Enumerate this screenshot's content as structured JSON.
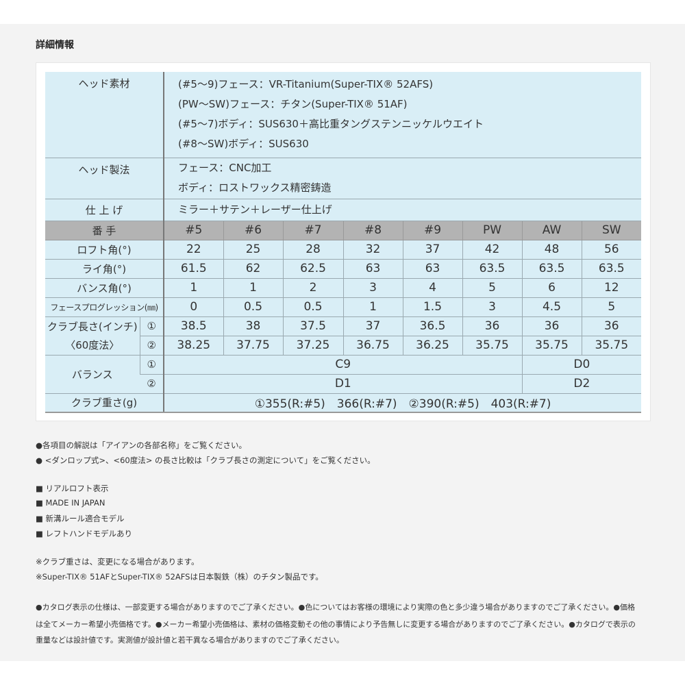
{
  "title": "詳細情報",
  "spec": {
    "head_material": {
      "label": "ヘッド素材",
      "lines": [
        "(#5〜9)フェース：VR-Titanium(Super-TIX® 52AFS)",
        "(PW〜SW)フェース：チタン(Super-TIX® 51AF)",
        "(#5〜7)ボディ：SUS630＋高比重タングステンニッケルウエイト",
        "(#8〜SW)ボディ：SUS630"
      ]
    },
    "head_method": {
      "label": "ヘッド製法",
      "lines": [
        "フェース：CNC加工",
        "ボディ：ロストワックス精密鋳造"
      ]
    },
    "finish": {
      "label": "仕 上 げ",
      "value": "ミラー＋サテン＋レーザー仕上げ"
    }
  },
  "table": {
    "header_label": "番 手",
    "columns": [
      "#5",
      "#6",
      "#7",
      "#8",
      "#9",
      "PW",
      "AW",
      "SW"
    ],
    "rows": [
      {
        "label": "ロフト角(°)",
        "values": [
          "22",
          "25",
          "28",
          "32",
          "37",
          "42",
          "48",
          "56"
        ]
      },
      {
        "label": "ライ角(°)",
        "values": [
          "61.5",
          "62",
          "62.5",
          "63",
          "63",
          "63.5",
          "63.5",
          "63.5"
        ]
      },
      {
        "label": "バンス角(°)",
        "values": [
          "1",
          "1",
          "2",
          "3",
          "4",
          "5",
          "6",
          "12"
        ]
      },
      {
        "label": "フェースプログレッション(㎜)",
        "values": [
          "0",
          "0.5",
          "0.5",
          "1",
          "1.5",
          "3",
          "4.5",
          "5"
        ]
      }
    ],
    "length": {
      "label1": "クラブ長さ(インチ)",
      "label2": "〈60度法〉",
      "marks": [
        "①",
        "②"
      ],
      "rows": [
        [
          "38.5",
          "38",
          "37.5",
          "37",
          "36.5",
          "36",
          "36",
          "36"
        ],
        [
          "38.25",
          "37.75",
          "37.25",
          "36.75",
          "36.25",
          "35.75",
          "35.75",
          "35.75"
        ]
      ]
    },
    "balance": {
      "label": "バランス",
      "marks": [
        "①",
        "②"
      ],
      "rows": [
        [
          "C9",
          "D0"
        ],
        [
          "D1",
          "D2"
        ]
      ]
    },
    "weight": {
      "label": "クラブ重さ(g)",
      "value": "①355(R:#5)　366(R:#7)　②390(R:#5)　403(R:#7)"
    }
  },
  "notes": {
    "bullets": [
      "●各項目の解説は「アイアンの各部名称」をご覧ください。",
      "● <ダンロップ式>、<60度法> の長さ比較は「クラブ長さの測定について」をご覧ください。"
    ],
    "features": [
      "■ リアルロフト表示",
      "■ MADE IN JAPAN",
      "■ 新溝ルール適合モデル",
      "■ レフトハンドモデルあり"
    ],
    "remarks": [
      "※クラブ重さは、変更になる場合があります。",
      "※Super-TIX® 51AFとSuper-TIX® 52AFSは日本製鉄（株）のチタン製品です。"
    ],
    "disclaimer": [
      "●カタログ表示の仕様は、一部変更する場合がありますのでご了承ください。●色についてはお客様の環境により実際の色と多少違う場合がありますのでご了承ください。●価格",
      "は全てメーカー希望小売価格です。●メーカー希望小売価格は、素材の価格変動その他の事情により予告無しに変更する場合がありますのでご了承ください。●カタログで表示の",
      "重量などは設計値です。実測値が設計値と若干異なる場合がありますのでご了承ください。"
    ]
  }
}
